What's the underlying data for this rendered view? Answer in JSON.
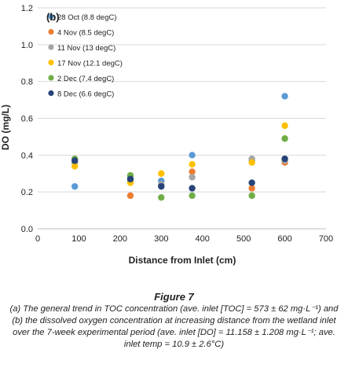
{
  "chart_data": {
    "type": "scatter",
    "panel_label": "(b)",
    "xlabel": "Distance from Inlet (cm)",
    "ylabel": "DO (mg/L)",
    "xlim": [
      0,
      700
    ],
    "ylim": [
      0.0,
      1.2
    ],
    "x_ticks": [
      "0",
      "100",
      "200",
      "300",
      "400",
      "500",
      "600",
      "700"
    ],
    "y_ticks": [
      "0.0",
      "0.2",
      "0.4",
      "0.6",
      "0.8",
      "1.0",
      "1.2"
    ],
    "grid": "horizontal",
    "legend_position": "top-left",
    "series": [
      {
        "name": "28 Oct (8.8 degC)",
        "color": "#5b9bd5",
        "x": [
          90,
          225,
          300,
          375,
          520,
          600
        ],
        "y": [
          0.23,
          0.26,
          0.26,
          0.4,
          0.37,
          0.72
        ]
      },
      {
        "name": "4 Nov (8.5 degC)",
        "color": "#ed7d31",
        "x": [
          225,
          300,
          375,
          520,
          600
        ],
        "y": [
          0.18,
          0.24,
          0.31,
          0.22,
          0.36
        ]
      },
      {
        "name": "11 Nov (13 degC)",
        "color": "#a5a5a5",
        "x": [
          90,
          225,
          300,
          375,
          520,
          600
        ],
        "y": [
          0.36,
          0.28,
          0.24,
          0.28,
          0.38,
          0.37
        ]
      },
      {
        "name": "17 Nov (12.1 degC)",
        "color": "#ffc000",
        "x": [
          90,
          225,
          300,
          375,
          520,
          600
        ],
        "y": [
          0.34,
          0.25,
          0.3,
          0.35,
          0.36,
          0.56
        ]
      },
      {
        "name": "2 Dec (7.4 degC)",
        "color": "#70ad47",
        "x": [
          90,
          225,
          300,
          375,
          520,
          600
        ],
        "y": [
          0.38,
          0.29,
          0.17,
          0.18,
          0.18,
          0.49
        ]
      },
      {
        "name": "8 Dec (6.6 degC)",
        "color": "#264478",
        "x": [
          90,
          225,
          300,
          375,
          520,
          600
        ],
        "y": [
          0.37,
          0.27,
          0.23,
          0.22,
          0.25,
          0.38
        ]
      }
    ]
  },
  "caption": {
    "title": "Figure 7",
    "text": "(a) The general trend in TOC concentration (ave. inlet [TOC] = 573 ± 62 mg·L⁻¹) and (b) the dissolved oxygen concentration at increasing distance from the wetland inlet over the 7-week experimental period (ave. inlet [DO] = 11.158 ± 1.208 mg·L⁻¹; ave. inlet temp = 10.9 ± 2.6°C)"
  }
}
